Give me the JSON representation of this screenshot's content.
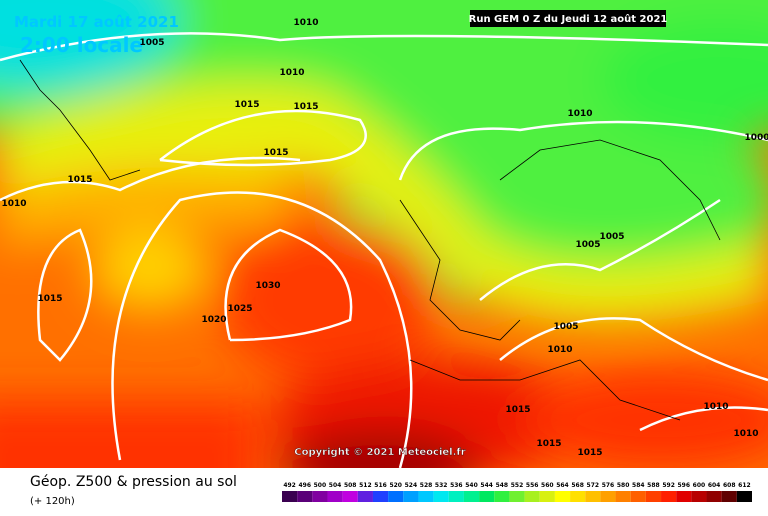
{
  "header": {
    "date": "Mardi 17 août 2021",
    "time": "2:00 locale",
    "run": "Run GEM 0 Z du Jeudi 12 août 2021",
    "copyright": "Copyright © 2021 Meteociel.fr"
  },
  "isobar_labels": [
    "1010",
    "1005",
    "1010",
    "1015",
    "1015",
    "1015",
    "1015",
    "1010",
    "1010",
    "1000",
    "1005",
    "1005",
    "1015",
    "1030",
    "1025",
    "1020",
    "1005",
    "1010",
    "1015",
    "1015",
    "1015",
    "1010",
    "1010"
  ],
  "legend": {
    "title": "Géop. Z500 & pression au sol",
    "subtitle": "(+ 120h)",
    "scale": [
      {
        "value": 492,
        "color": "#3a0050"
      },
      {
        "value": 496,
        "color": "#5a0078"
      },
      {
        "value": 500,
        "color": "#8000a0"
      },
      {
        "value": 504,
        "color": "#a000c8"
      },
      {
        "value": 508,
        "color": "#c000e0"
      },
      {
        "value": 512,
        "color": "#6020e0"
      },
      {
        "value": 516,
        "color": "#2040ff"
      },
      {
        "value": 520,
        "color": "#0070ff"
      },
      {
        "value": 524,
        "color": "#00a0ff"
      },
      {
        "value": 528,
        "color": "#00c8ff"
      },
      {
        "value": 532,
        "color": "#00e8f0"
      },
      {
        "value": 536,
        "color": "#00f0c0"
      },
      {
        "value": 540,
        "color": "#00f090"
      },
      {
        "value": 544,
        "color": "#00e860"
      },
      {
        "value": 548,
        "color": "#30f040"
      },
      {
        "value": 552,
        "color": "#70f030"
      },
      {
        "value": 556,
        "color": "#a8f020"
      },
      {
        "value": 560,
        "color": "#d8f010"
      },
      {
        "value": 564,
        "color": "#ffff00"
      },
      {
        "value": 568,
        "color": "#ffe000"
      },
      {
        "value": 572,
        "color": "#ffc000"
      },
      {
        "value": 576,
        "color": "#ffa000"
      },
      {
        "value": 580,
        "color": "#ff8000"
      },
      {
        "value": 584,
        "color": "#ff6000"
      },
      {
        "value": 588,
        "color": "#ff4000"
      },
      {
        "value": 592,
        "color": "#ff2000"
      },
      {
        "value": 596,
        "color": "#e00000"
      },
      {
        "value": 600,
        "color": "#b80000"
      },
      {
        "value": 604,
        "color": "#900000"
      },
      {
        "value": 608,
        "color": "#600000"
      },
      {
        "value": 612,
        "color": "#000000"
      }
    ]
  }
}
